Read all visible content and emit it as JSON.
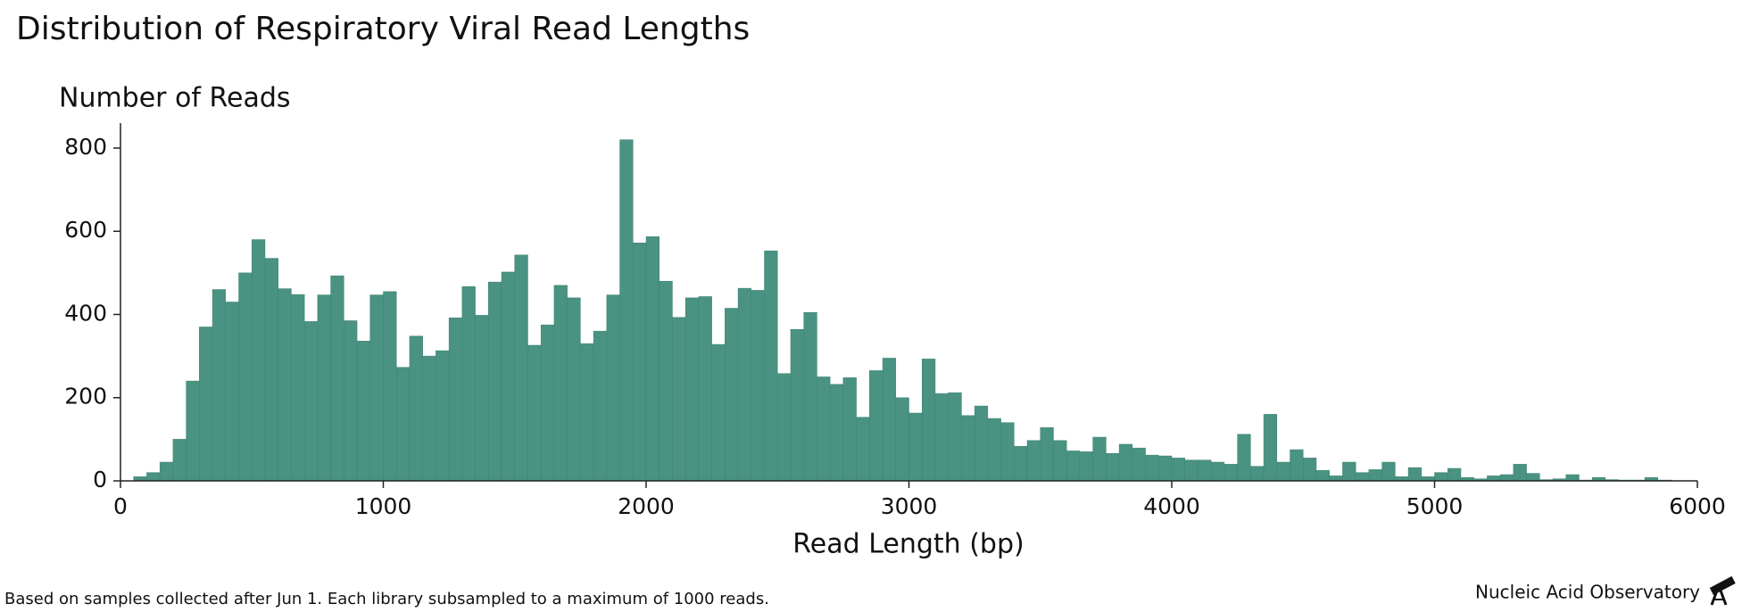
{
  "chart_data": {
    "type": "histogram",
    "title": "Distribution of Respiratory Viral Read Lengths",
    "y_label": "Number of Reads",
    "x_label": "Read Length (bp)",
    "footnote": "Based on samples collected after Jun 1.  Each library subsampled to a maximum of 1000 reads.",
    "credit": "Nucleic Acid Observatory",
    "color": "#4a9282",
    "grid": false,
    "xlim": [
      0,
      6000
    ],
    "xticks": [
      0,
      1000,
      2000,
      3000,
      4000,
      5000,
      6000
    ],
    "ylim": [
      0,
      860
    ],
    "yticks": [
      0,
      200,
      400,
      600,
      800
    ],
    "bins": [
      50,
      100,
      150,
      200,
      250,
      300,
      350,
      400,
      450,
      500,
      550,
      600,
      650,
      700,
      750,
      800,
      850,
      900,
      950,
      1000,
      1050,
      1100,
      1150,
      1200,
      1250,
      1300,
      1350,
      1400,
      1450,
      1500,
      1550,
      1600,
      1650,
      1700,
      1750,
      1800,
      1850,
      1900,
      1950,
      2000,
      2050,
      2100,
      2150,
      2200,
      2250,
      2300,
      2350,
      2400,
      2450,
      2500,
      2550,
      2600,
      2650,
      2700,
      2750,
      2800,
      2850,
      2900,
      2950,
      3000,
      3050,
      3100,
      3150,
      3200,
      3250,
      3300,
      3350,
      3400,
      3450,
      3500,
      3550,
      3600,
      3650,
      3700,
      3750,
      3800,
      3850,
      3900,
      3950,
      4000,
      4050,
      4100,
      4150,
      4200,
      4250,
      4300,
      4350,
      4400,
      4450,
      4500,
      4550,
      4600,
      4650,
      4700,
      4750,
      4800,
      4850,
      4900,
      4950,
      5000,
      5050,
      5100,
      5150,
      5200,
      5250,
      5300,
      5350,
      5400,
      5450,
      5500,
      5550,
      5600,
      5650,
      5700,
      5750,
      5800,
      5850,
      5900
    ],
    "values": [
      10,
      20,
      45,
      100,
      240,
      370,
      460,
      430,
      500,
      580,
      535,
      462,
      448,
      383,
      447,
      493,
      385,
      336,
      447,
      455,
      273,
      348,
      300,
      313,
      392,
      467,
      398,
      478,
      502,
      543,
      326,
      375,
      470,
      440,
      330,
      360,
      447,
      820,
      572,
      587,
      480,
      393,
      440,
      443,
      328,
      415,
      463,
      458,
      553,
      258,
      364,
      405,
      250,
      232,
      248,
      153,
      265,
      295,
      200,
      163,
      293,
      210,
      212,
      157,
      180,
      150,
      140,
      83,
      97,
      128,
      97,
      72,
      70,
      105,
      66,
      88,
      79,
      62,
      60,
      55,
      50,
      50,
      45,
      40,
      112,
      35,
      160,
      45,
      75,
      55,
      25,
      12,
      45,
      20,
      27,
      45,
      10,
      32,
      10,
      20,
      30,
      8,
      5,
      12,
      15,
      40,
      18,
      3,
      5,
      15,
      2,
      8,
      3,
      2,
      2,
      8,
      2
    ]
  }
}
